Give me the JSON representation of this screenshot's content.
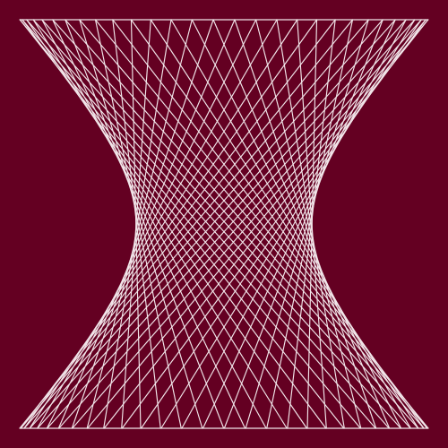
{
  "artwork": {
    "subject": "string-art-hyperboloid",
    "background_color": "#640022",
    "line_color": "#f2e6ea",
    "strands_per_family": 30,
    "families": 2
  }
}
